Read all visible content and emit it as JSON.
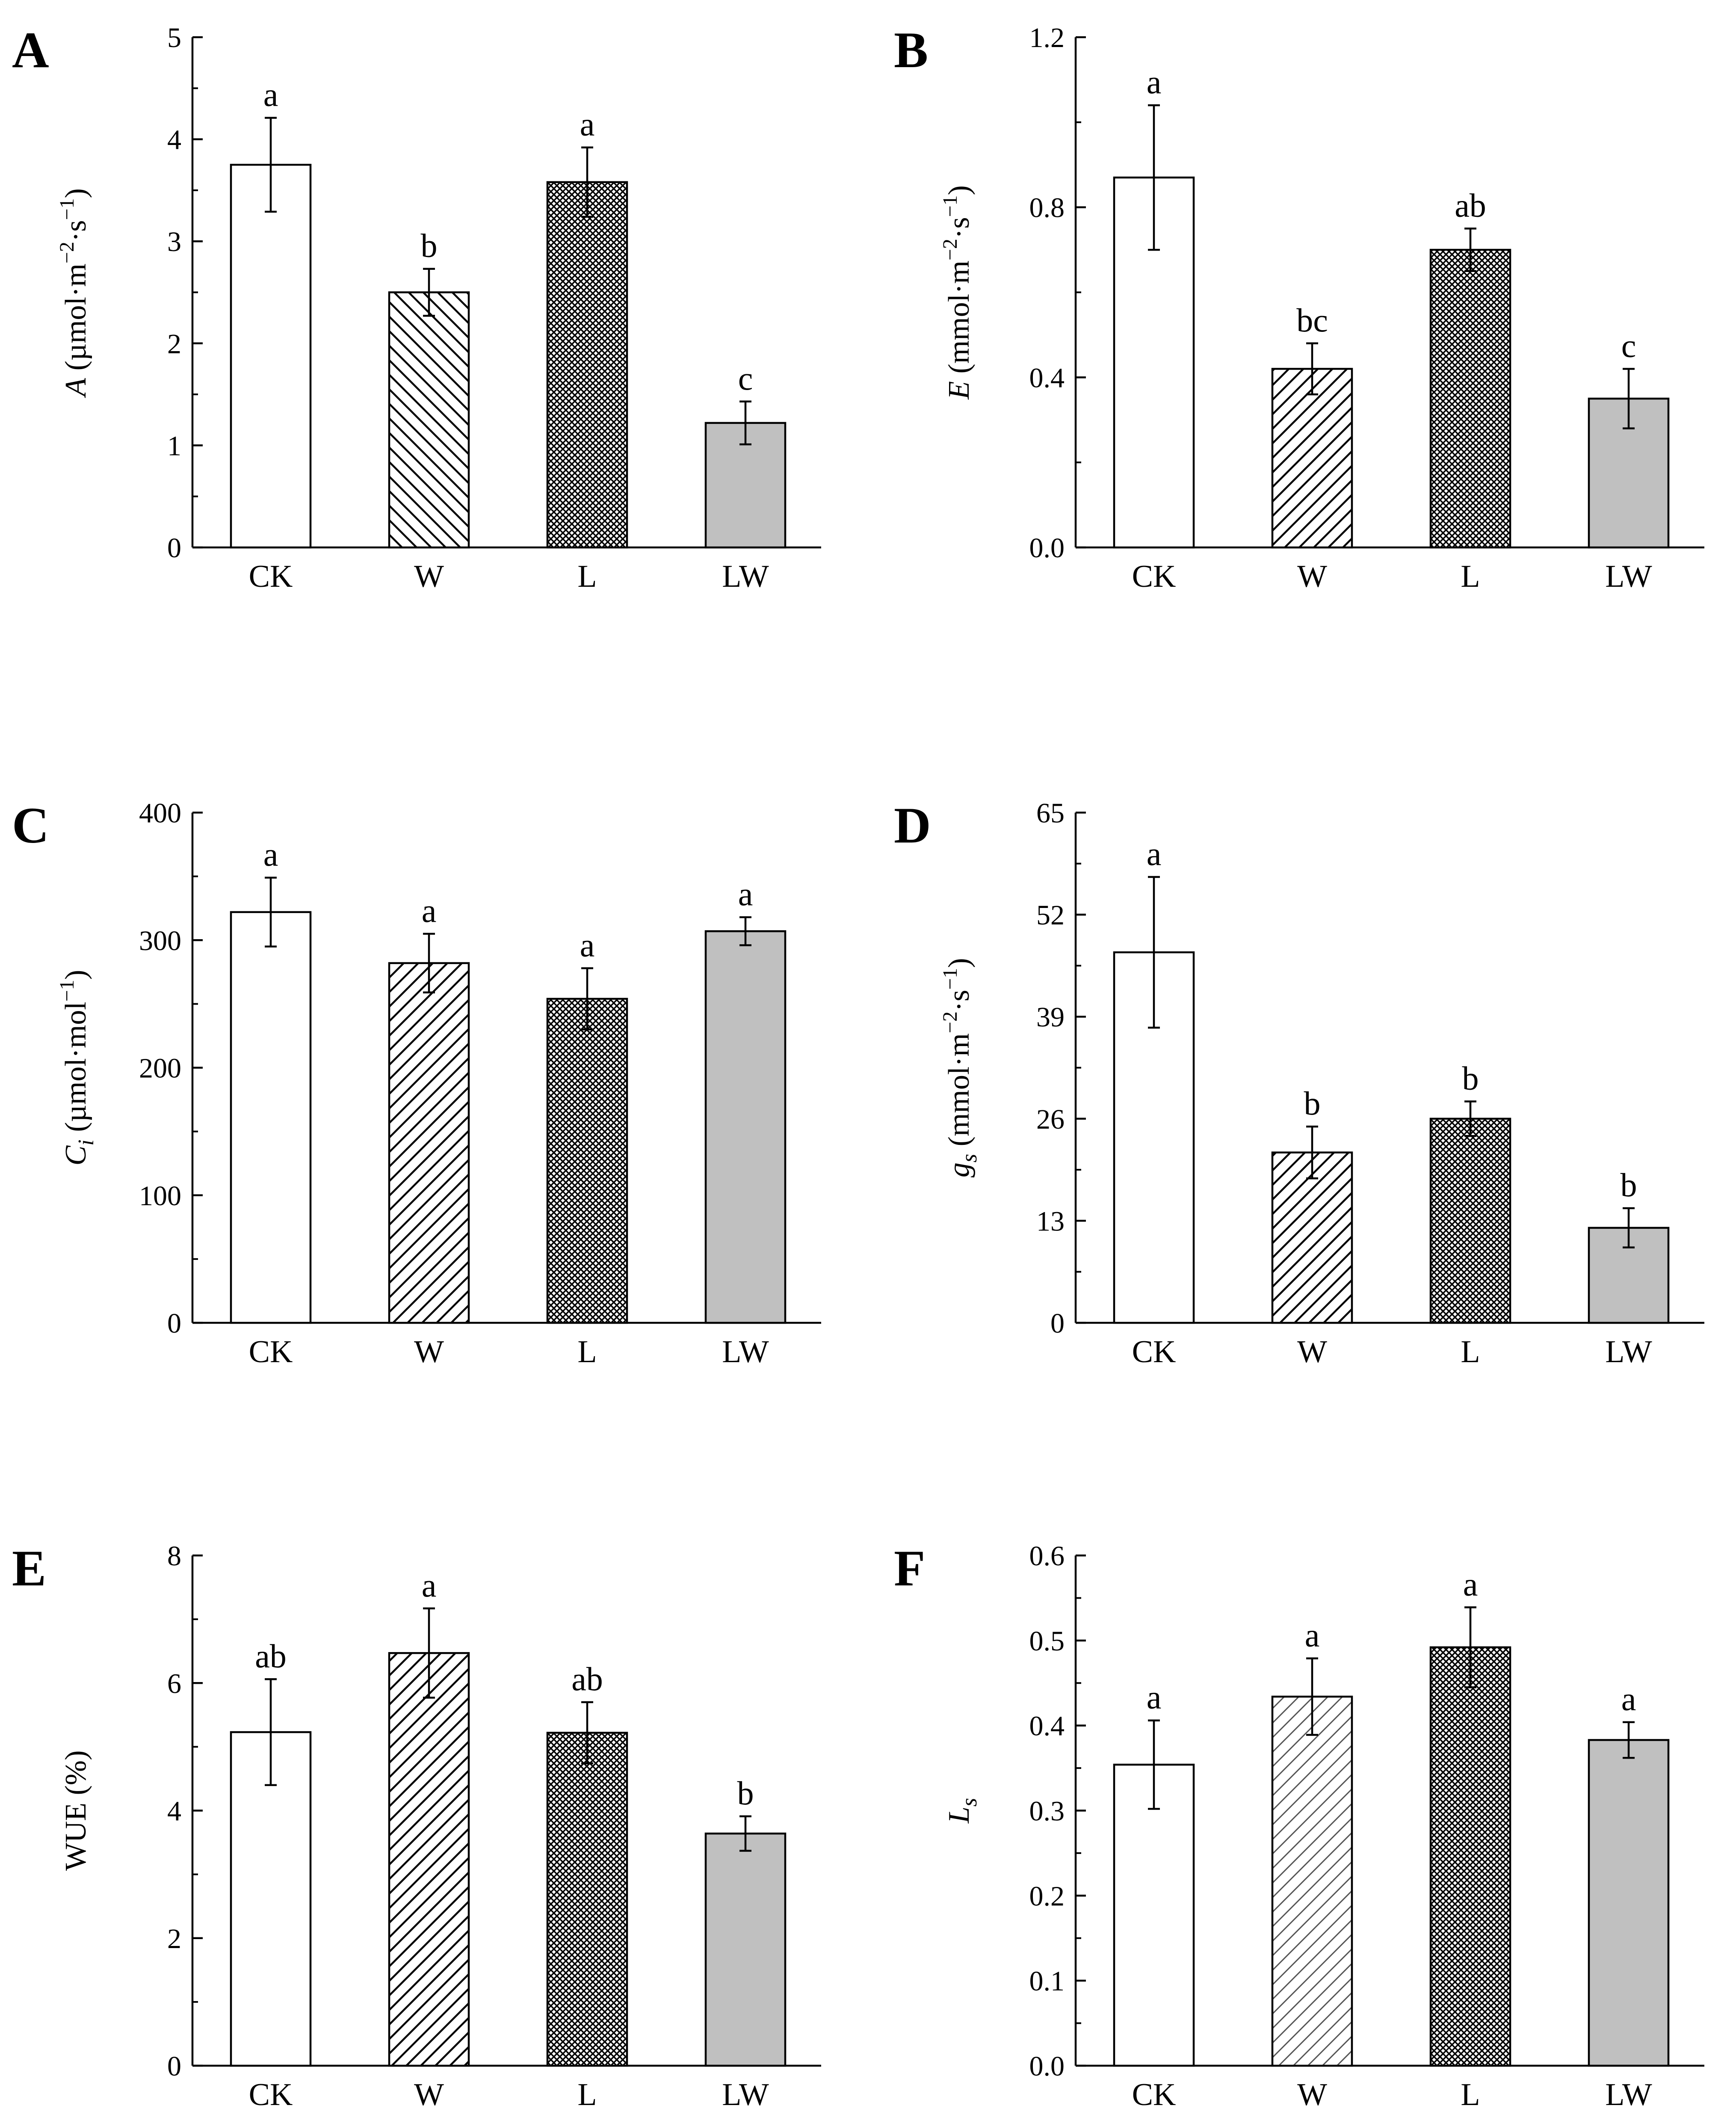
{
  "chart_data": [
    {
      "type": "bar",
      "panel": "A",
      "ylabel": {
        "var": "A",
        "unit": " (µmol·m",
        "exp1": "−2",
        "mid": "·s",
        "exp2": "−1",
        "close": ")"
      },
      "categories": [
        "CK",
        "W",
        "L",
        "LW"
      ],
      "values": [
        3.75,
        2.5,
        3.58,
        1.22
      ],
      "errors": [
        0.46,
        0.23,
        0.34,
        0.21
      ],
      "significance": [
        "a",
        "b",
        "a",
        "c"
      ],
      "ylim": [
        0,
        5
      ],
      "yticks": [
        0,
        1,
        2,
        3,
        4,
        5
      ],
      "ytick_labels": [
        "0",
        "1",
        "2",
        "3",
        "4",
        "5"
      ]
    },
    {
      "type": "bar",
      "panel": "B",
      "ylabel": {
        "var": "E",
        "unit": " (mmol·m",
        "exp1": "−2",
        "mid": "·s",
        "exp2": "−1",
        "close": ")"
      },
      "categories": [
        "CK",
        "W",
        "L",
        "LW"
      ],
      "values": [
        0.87,
        0.42,
        0.7,
        0.35
      ],
      "errors": [
        0.17,
        0.06,
        0.05,
        0.07
      ],
      "significance": [
        "a",
        "bc",
        "ab",
        "c"
      ],
      "ylim": [
        0,
        1.2
      ],
      "yticks": [
        0,
        0.4,
        0.8,
        1.2
      ],
      "ytick_labels": [
        "0.0",
        "0.4",
        "0.8",
        "1.2"
      ]
    },
    {
      "type": "bar",
      "panel": "C",
      "ylabel": {
        "var": "C",
        "sub": "i",
        "unit": " (µmol·mol",
        "exp1": "−1",
        "close": ")"
      },
      "categories": [
        "CK",
        "W",
        "L",
        "LW"
      ],
      "values": [
        322,
        282,
        254,
        307
      ],
      "errors": [
        27,
        23,
        24,
        11
      ],
      "significance": [
        "a",
        "a",
        "a",
        "a"
      ],
      "ylim": [
        0,
        400
      ],
      "yticks": [
        0,
        100,
        200,
        300,
        400
      ],
      "ytick_labels": [
        "0",
        "100",
        "200",
        "300",
        "400"
      ]
    },
    {
      "type": "bar",
      "panel": "D",
      "ylabel": {
        "var": "g",
        "sub": "s",
        "unit": " (mmol·m",
        "exp1": "−2",
        "mid": "·s",
        "exp2": "−1",
        "close": ")"
      },
      "categories": [
        "CK",
        "W",
        "L",
        "LW"
      ],
      "values": [
        47.2,
        21.7,
        26.0,
        12.1
      ],
      "errors": [
        9.6,
        3.3,
        2.2,
        2.5
      ],
      "significance": [
        "a",
        "b",
        "b",
        "b"
      ],
      "ylim": [
        0,
        65
      ],
      "yticks": [
        0,
        13,
        26,
        39,
        52,
        65
      ],
      "ytick_labels": [
        "0",
        "13",
        "26",
        "39",
        "52",
        "65"
      ]
    },
    {
      "type": "bar",
      "panel": "E",
      "ylabel": {
        "var": "",
        "unit": "WUE (%)"
      },
      "categories": [
        "CK",
        "W",
        "L",
        "LW"
      ],
      "values": [
        5.23,
        6.47,
        5.22,
        3.64
      ],
      "errors": [
        0.83,
        0.7,
        0.48,
        0.27
      ],
      "significance": [
        "ab",
        "a",
        "ab",
        "b"
      ],
      "ylim": [
        0,
        8
      ],
      "yticks": [
        0,
        2,
        4,
        6,
        8
      ],
      "ytick_labels": [
        "0",
        "2",
        "4",
        "6",
        "8"
      ]
    },
    {
      "type": "bar",
      "panel": "F",
      "ylabel": {
        "var": "L",
        "sub": "s"
      },
      "categories": [
        "CK",
        "W",
        "L",
        "LW"
      ],
      "values": [
        0.354,
        0.434,
        0.492,
        0.383
      ],
      "errors": [
        0.052,
        0.045,
        0.047,
        0.021
      ],
      "significance": [
        "a",
        "a",
        "a",
        "a"
      ],
      "ylim": [
        0,
        0.6
      ],
      "yticks": [
        0,
        0.1,
        0.2,
        0.3,
        0.4,
        0.5,
        0.6
      ],
      "ytick_labels": [
        "0.0",
        "0.1",
        "0.2",
        "0.3",
        "0.4",
        "0.5",
        "0.6"
      ]
    }
  ],
  "colors": {
    "ck_fill": "#ffffff",
    "w_fill": "#ffffff",
    "l_fill": "#3a3a3a",
    "lw_fill": "#c0c0c0",
    "stroke": "#000000"
  }
}
